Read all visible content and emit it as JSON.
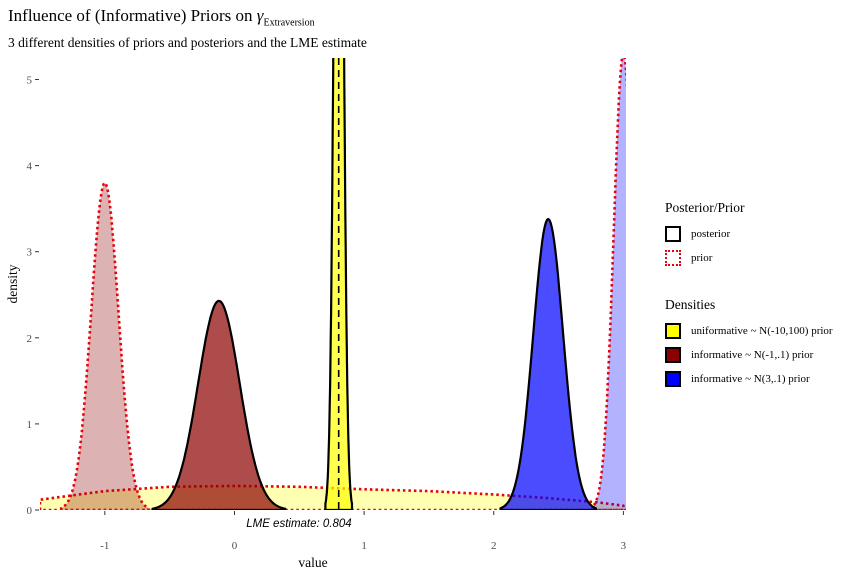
{
  "title_main": "Influence of (Informative) Priors on ",
  "title_symbol": "γ",
  "title_subscript": "Extraversion",
  "subtitle": "3 different densities of priors and posteriors and the LME estimate",
  "legend_linetype": {
    "title": "Posterior/Prior",
    "items": [
      {
        "label": "posterior",
        "border_color": "#000000",
        "style": "solid"
      },
      {
        "label": "prior",
        "border_color": "#e8000b",
        "style": "dotted"
      }
    ]
  },
  "legend_fill": {
    "title": "Densities",
    "items": [
      {
        "label": "uniformative ~ N(-10,100) prior",
        "color": "#ffff00"
      },
      {
        "label": "informative ~ N(-1,.1) prior",
        "color": "#8b0000"
      },
      {
        "label": "informative ~ N(3,.1) prior",
        "color": "#0000ff"
      }
    ]
  },
  "chart_data": {
    "type": "area",
    "xlabel": "value",
    "ylabel": "density",
    "xlim": [
      -1.5,
      3.02
    ],
    "ylim": [
      0,
      5.25
    ],
    "xticks": [
      -1,
      0,
      1,
      2,
      3
    ],
    "yticks": [
      0,
      1,
      2,
      3,
      4,
      5
    ],
    "grid": false,
    "annotation": {
      "label": "LME estimate:  0.804",
      "x": 0.804
    },
    "series": [
      {
        "name": "uniformative ~ N(-10,100) prior",
        "kind": "prior",
        "fill": "#ffff00",
        "shape": "flat",
        "x": [
          -1.5,
          -1.2,
          -1.0,
          -0.5,
          0.0,
          0.5,
          1.0,
          1.5,
          2.0,
          2.4,
          2.8,
          3.0
        ],
        "y": [
          0.12,
          0.18,
          0.22,
          0.27,
          0.28,
          0.27,
          0.24,
          0.22,
          0.18,
          0.14,
          0.09,
          0.05
        ]
      },
      {
        "name": "uniformative ~ N(-10,100) prior",
        "kind": "posterior",
        "fill": "#ffff00",
        "shape": "peak",
        "mean": 0.804,
        "sd": 0.032,
        "peak": 12.5
      },
      {
        "name": "informative ~ N(-1,.1) prior",
        "kind": "prior",
        "fill": "#8b0000",
        "shape": "peak",
        "mean": -1.0,
        "sd": 0.105,
        "peak": 3.8
      },
      {
        "name": "informative ~ N(-1,.1) prior",
        "kind": "posterior",
        "fill": "#8b0000",
        "shape": "peak",
        "mean": -0.12,
        "sd": 0.16,
        "peak": 2.43
      },
      {
        "name": "informative ~ N(3,.1) prior",
        "kind": "posterior",
        "fill": "#0000ff",
        "shape": "peak",
        "mean": 2.42,
        "sd": 0.115,
        "peak": 3.38
      },
      {
        "name": "informative ~ N(3,.1) prior",
        "kind": "prior",
        "fill": "#0000ff",
        "shape": "peak",
        "mean": 3.0,
        "sd": 0.075,
        "peak": 5.3
      }
    ]
  }
}
